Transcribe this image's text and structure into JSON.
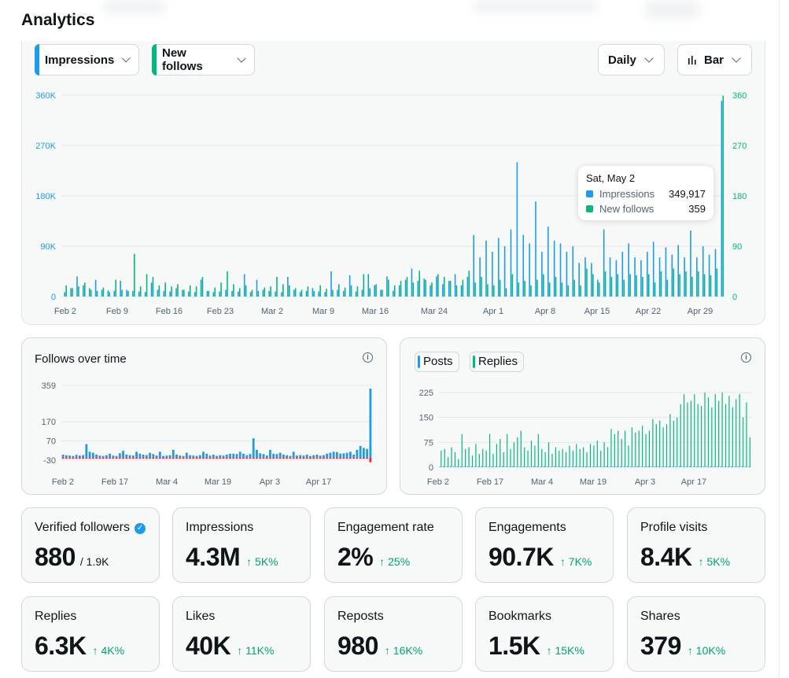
{
  "page": {
    "title": "Analytics"
  },
  "controls": {
    "metric1": {
      "label": "Impressions",
      "color": "#1d9bf0"
    },
    "metric2": {
      "label": "New follows",
      "color": "#00ba7c"
    },
    "interval": "Daily",
    "chart_type": "Bar"
  },
  "colors": {
    "impressions": "#1d9bf0",
    "follows": "#00ba7c",
    "negative": "#f4212e",
    "posts": "#1d9bf0",
    "replies": "#00ba7c"
  },
  "tooltip": {
    "date": "Sat, May 2",
    "impressions_label": "Impressions",
    "impressions_value": "349,917",
    "follows_label": "New follows",
    "follows_value": "359"
  },
  "main_chart": {
    "left_ticks": [
      "360K",
      "270K",
      "180K",
      "90K",
      "0"
    ],
    "right_ticks": [
      "360",
      "270",
      "180",
      "90",
      "0"
    ],
    "x_labels": [
      "Feb 2",
      "Feb 9",
      "Feb 16",
      "Feb 23",
      "Mar 2",
      "Mar 9",
      "Mar 16",
      "Mar 24",
      "Apr 1",
      "Apr 8",
      "Apr 15",
      "Apr 22",
      "Apr 29"
    ]
  },
  "follows_chart": {
    "title": "Follows over time",
    "y_ticks": [
      "359",
      "170",
      "70",
      "-30"
    ],
    "x_labels": [
      "Feb 2",
      "Feb 17",
      "Mar 4",
      "Mar 19",
      "Apr 3",
      "Apr 17"
    ]
  },
  "posts_chart": {
    "legend_posts": "Posts",
    "legend_replies": "Replies",
    "y_ticks": [
      "225",
      "150",
      "75",
      "0"
    ],
    "x_labels": [
      "Feb 2",
      "Feb 17",
      "Mar 4",
      "Mar 19",
      "Apr 3",
      "Apr 17"
    ]
  },
  "stats": [
    {
      "label": "Verified followers",
      "value": "880",
      "sub": "/ 1.9K",
      "change": ""
    },
    {
      "label": "Impressions",
      "value": "4.3M",
      "change": "↑ 5K%"
    },
    {
      "label": "Engagement rate",
      "value": "2%",
      "change": "↑ 25%"
    },
    {
      "label": "Engagements",
      "value": "90.7K",
      "change": "↑ 7K%"
    },
    {
      "label": "Profile visits",
      "value": "8.4K",
      "change": "↑ 5K%"
    },
    {
      "label": "Replies",
      "value": "6.3K",
      "change": "↑ 4K%"
    },
    {
      "label": "Likes",
      "value": "40K",
      "change": "↑ 11K%"
    },
    {
      "label": "Reposts",
      "value": "980",
      "change": "↑ 16K%"
    },
    {
      "label": "Bookmarks",
      "value": "1.5K",
      "change": "↑ 15K%"
    },
    {
      "label": "Shares",
      "value": "379",
      "change": "↑ 10K%"
    }
  ],
  "chart_data": [
    {
      "type": "bar",
      "title": "",
      "series": [
        {
          "name": "Impressions",
          "values": [
            8000,
            15000,
            36000,
            20000,
            15000,
            30000,
            12000,
            11000,
            10000,
            28000,
            12000,
            10000,
            9000,
            8000,
            25000,
            12000,
            10000,
            9000,
            15000,
            12000,
            9000,
            8000,
            30000,
            10000,
            8000,
            9000,
            12000,
            10000,
            9000,
            40000,
            8000,
            30000,
            12000,
            10000,
            9000,
            8000,
            35000,
            12000,
            8000,
            10000,
            15000,
            9000,
            8000,
            45000,
            12000,
            10000,
            38000,
            9000,
            12000,
            40000,
            20000,
            12000,
            36000,
            10000,
            20000,
            30000,
            50000,
            28000,
            32000,
            20000,
            36000,
            22000,
            28000,
            40000,
            20000,
            35000,
            110000,
            70000,
            100000,
            80000,
            105000,
            90000,
            120000,
            240000,
            110000,
            95000,
            170000,
            80000,
            125000,
            100000,
            95000,
            80000,
            90000,
            60000,
            70000,
            60000,
            30000,
            120000,
            70000,
            65000,
            80000,
            95000,
            70000,
            65000,
            80000,
            98000,
            70000,
            88000,
            75000,
            92000,
            70000,
            118000,
            70000,
            90000,
            75000,
            85000,
            349917
          ]
        },
        {
          "name": "New follows",
          "values": [
            20,
            15,
            18,
            25,
            12,
            10,
            16,
            8,
            30,
            12,
            10,
            76,
            18,
            40,
            35,
            20,
            25,
            18,
            22,
            12,
            20,
            18,
            35,
            10,
            16,
            25,
            45,
            22,
            15,
            20,
            12,
            10,
            16,
            18,
            35,
            22,
            20,
            15,
            12,
            18,
            10,
            20,
            14,
            12,
            22,
            16,
            20,
            18,
            40,
            15,
            22,
            12,
            30,
            20,
            28,
            35,
            25,
            46,
            30,
            25,
            40,
            35,
            28,
            20,
            30,
            46,
            25,
            35,
            22,
            20,
            30,
            15,
            40,
            25,
            28,
            20,
            30,
            40,
            25,
            35,
            25,
            20,
            30,
            20,
            50,
            40,
            25,
            45,
            35,
            40,
            30,
            40,
            38,
            35,
            40,
            25,
            45,
            30,
            50,
            40,
            45,
            35,
            45,
            40,
            38,
            50,
            359
          ]
        }
      ],
      "ylim_left": [
        0,
        360000
      ],
      "ylim_right": [
        0,
        360
      ],
      "xlabel": "",
      "ylabel": ""
    },
    {
      "type": "bar",
      "title": "Follows over time",
      "series": [
        {
          "name": "New follows",
          "values": [
            15,
            12,
            10,
            8,
            14,
            10,
            12,
            70,
            30,
            25,
            15,
            10,
            8,
            12,
            20,
            10,
            8,
            22,
            35,
            15,
            12,
            10,
            30,
            20,
            15,
            12,
            25,
            18,
            10,
            30,
            8,
            10,
            12,
            40,
            15,
            10,
            8,
            25,
            12,
            10,
            8,
            12,
            30,
            20,
            10,
            15,
            8,
            12,
            10,
            15,
            20,
            20,
            18,
            30,
            20,
            12,
            18,
            100,
            40,
            22,
            18,
            10,
            40,
            20,
            18,
            25,
            15,
            12,
            8,
            30,
            10,
            12,
            10,
            15,
            8,
            12,
            15,
            10,
            12,
            20,
            25,
            30,
            28,
            20,
            22,
            25,
            30,
            15,
            40,
            60,
            50,
            45,
            359
          ]
        },
        {
          "name": "Unfollows",
          "values": [
            -6,
            -6,
            -6,
            -6,
            -6,
            -6,
            -6,
            -6,
            -6,
            -6,
            -6,
            -6,
            -6,
            -6,
            -6,
            -6,
            -6,
            -6,
            -6,
            -6,
            -6,
            -6,
            -6,
            -6,
            -6,
            -6,
            -6,
            -6,
            -6,
            -6,
            -6,
            -6,
            -6,
            -6,
            -6,
            -6,
            -6,
            -6,
            -6,
            -6,
            -6,
            -6,
            -6,
            -6,
            -6,
            -6,
            -6,
            -6,
            -6,
            -6,
            -6,
            -6,
            -6,
            -6,
            -6,
            -6,
            -6,
            -6,
            -6,
            -6,
            -6,
            -6,
            -6,
            -6,
            -6,
            -6,
            -6,
            -6,
            -6,
            -6,
            -6,
            -6,
            -6,
            -6,
            -6,
            -6,
            -6,
            -6,
            -6,
            -6,
            -6,
            -6,
            -6,
            -6,
            -6,
            -6,
            -6,
            -6,
            -6,
            -6,
            -6,
            -6,
            -30
          ]
        }
      ],
      "ylim": [
        -30,
        359
      ]
    },
    {
      "type": "bar",
      "title": "",
      "series": [
        {
          "name": "Posts",
          "values": [
            2,
            3,
            2,
            3,
            2,
            2,
            3,
            2,
            2,
            3,
            2,
            2,
            3,
            2,
            2,
            3,
            2,
            2,
            3,
            2,
            2,
            3,
            2,
            2,
            3,
            2,
            2,
            3,
            2,
            2,
            3,
            2,
            2,
            3,
            2,
            2,
            3,
            2,
            2,
            3,
            2,
            2,
            3,
            2,
            2,
            3,
            2,
            2,
            3,
            2,
            2,
            3,
            2,
            2,
            3,
            2,
            2,
            3,
            2,
            2,
            3,
            2,
            2,
            3,
            2,
            2,
            3,
            2,
            2,
            3,
            2,
            2,
            3,
            2,
            2,
            3,
            2,
            2,
            3,
            2,
            2,
            3,
            2,
            2,
            3,
            2,
            2,
            3,
            2,
            2
          ]
        },
        {
          "name": "Replies",
          "values": [
            50,
            55,
            30,
            60,
            45,
            25,
            100,
            55,
            60,
            35,
            70,
            40,
            55,
            50,
            100,
            40,
            70,
            85,
            45,
            100,
            55,
            75,
            90,
            110,
            60,
            50,
            80,
            65,
            100,
            55,
            45,
            75,
            40,
            60,
            50,
            55,
            45,
            65,
            50,
            70,
            55,
            60,
            45,
            70,
            65,
            80,
            50,
            75,
            60,
            115,
            100,
            110,
            85,
            110,
            65,
            120,
            105,
            110,
            125,
            100,
            110,
            145,
            130,
            140,
            120,
            130,
            160,
            140,
            150,
            190,
            220,
            195,
            200,
            220,
            190,
            185,
            225,
            210,
            180,
            220,
            200,
            225,
            190,
            215,
            180,
            205,
            220,
            150,
            195,
            90
          ]
        }
      ],
      "ylim": [
        0,
        225
      ]
    }
  ]
}
